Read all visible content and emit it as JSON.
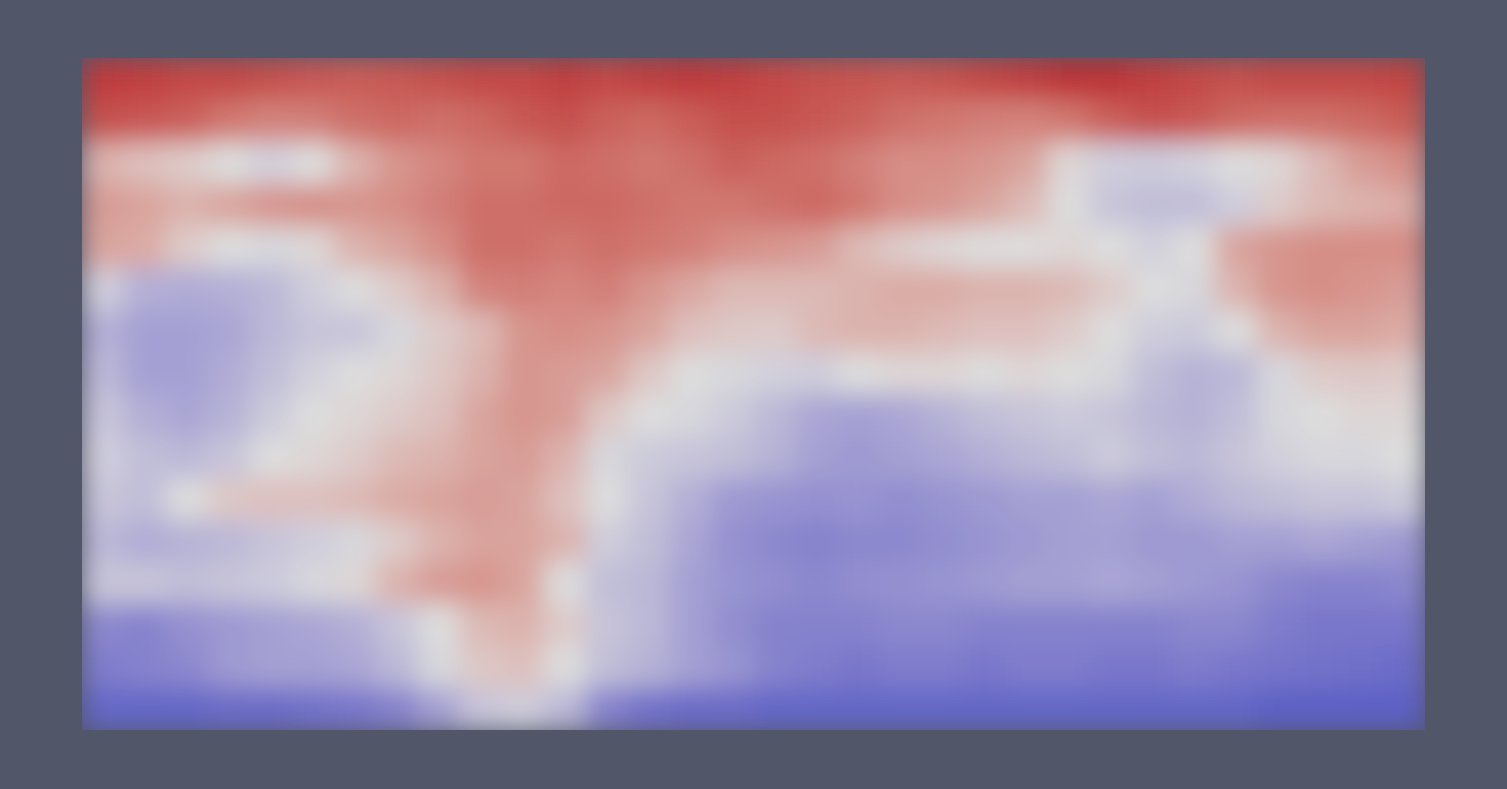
{
  "chart_data": {
    "type": "heatmap",
    "tick_labels": false,
    "zlim": [
      0,
      1
    ],
    "cells": [
      [
        0.93,
        0.92,
        0.9,
        0.9,
        0.88,
        0.86,
        0.85,
        0.86,
        0.88,
        0.9,
        0.9,
        0.92,
        0.9,
        0.92,
        0.93,
        0.92,
        0.9,
        0.88,
        0.87,
        0.86,
        0.87,
        0.9,
        0.92,
        0.94,
        0.94,
        0.92,
        0.9,
        0.88,
        0.9,
        0.9,
        0.9,
        0.91
      ],
      [
        0.88,
        0.86,
        0.84,
        0.78,
        0.75,
        0.76,
        0.8,
        0.82,
        0.8,
        0.82,
        0.86,
        0.88,
        0.84,
        0.82,
        0.85,
        0.88,
        0.88,
        0.86,
        0.84,
        0.8,
        0.78,
        0.76,
        0.75,
        0.78,
        0.84,
        0.88,
        0.86,
        0.82,
        0.8,
        0.8,
        0.82,
        0.85
      ],
      [
        0.62,
        0.58,
        0.55,
        0.5,
        0.46,
        0.5,
        0.62,
        0.7,
        0.74,
        0.78,
        0.78,
        0.82,
        0.8,
        0.78,
        0.8,
        0.84,
        0.82,
        0.8,
        0.76,
        0.72,
        0.72,
        0.7,
        0.66,
        0.52,
        0.45,
        0.44,
        0.46,
        0.5,
        0.52,
        0.6,
        0.68,
        0.72
      ],
      [
        0.68,
        0.66,
        0.62,
        0.66,
        0.7,
        0.72,
        0.7,
        0.72,
        0.76,
        0.8,
        0.8,
        0.82,
        0.82,
        0.8,
        0.78,
        0.78,
        0.8,
        0.82,
        0.78,
        0.72,
        0.7,
        0.66,
        0.6,
        0.5,
        0.42,
        0.4,
        0.4,
        0.45,
        0.55,
        0.6,
        0.62,
        0.64
      ],
      [
        0.66,
        0.64,
        0.55,
        0.5,
        0.48,
        0.52,
        0.62,
        0.66,
        0.72,
        0.8,
        0.8,
        0.78,
        0.8,
        0.78,
        0.76,
        0.72,
        0.7,
        0.68,
        0.6,
        0.55,
        0.52,
        0.5,
        0.5,
        0.52,
        0.5,
        0.46,
        0.5,
        0.66,
        0.7,
        0.72,
        0.72,
        0.72
      ],
      [
        0.45,
        0.35,
        0.34,
        0.35,
        0.38,
        0.45,
        0.5,
        0.55,
        0.62,
        0.75,
        0.76,
        0.74,
        0.76,
        0.7,
        0.65,
        0.6,
        0.6,
        0.6,
        0.62,
        0.64,
        0.64,
        0.62,
        0.62,
        0.6,
        0.55,
        0.5,
        0.48,
        0.62,
        0.7,
        0.72,
        0.7,
        0.68
      ],
      [
        0.35,
        0.3,
        0.3,
        0.32,
        0.38,
        0.42,
        0.42,
        0.48,
        0.55,
        0.6,
        0.7,
        0.72,
        0.7,
        0.66,
        0.58,
        0.56,
        0.55,
        0.6,
        0.62,
        0.62,
        0.6,
        0.58,
        0.58,
        0.55,
        0.5,
        0.45,
        0.44,
        0.5,
        0.62,
        0.66,
        0.66,
        0.64
      ],
      [
        0.38,
        0.3,
        0.3,
        0.34,
        0.4,
        0.46,
        0.5,
        0.52,
        0.56,
        0.62,
        0.7,
        0.68,
        0.66,
        0.56,
        0.5,
        0.48,
        0.46,
        0.45,
        0.5,
        0.52,
        0.52,
        0.5,
        0.52,
        0.5,
        0.48,
        0.4,
        0.36,
        0.38,
        0.48,
        0.55,
        0.56,
        0.55
      ],
      [
        0.42,
        0.35,
        0.32,
        0.36,
        0.44,
        0.5,
        0.52,
        0.55,
        0.58,
        0.66,
        0.7,
        0.68,
        0.56,
        0.5,
        0.48,
        0.44,
        0.38,
        0.32,
        0.3,
        0.32,
        0.36,
        0.4,
        0.42,
        0.44,
        0.42,
        0.38,
        0.36,
        0.4,
        0.48,
        0.5,
        0.52,
        0.52
      ],
      [
        0.45,
        0.4,
        0.38,
        0.42,
        0.5,
        0.52,
        0.55,
        0.6,
        0.62,
        0.66,
        0.68,
        0.62,
        0.48,
        0.44,
        0.42,
        0.4,
        0.36,
        0.3,
        0.28,
        0.3,
        0.32,
        0.35,
        0.38,
        0.4,
        0.44,
        0.4,
        0.38,
        0.42,
        0.46,
        0.48,
        0.48,
        0.5
      ],
      [
        0.42,
        0.4,
        0.5,
        0.56,
        0.58,
        0.58,
        0.6,
        0.64,
        0.66,
        0.68,
        0.66,
        0.58,
        0.5,
        0.42,
        0.35,
        0.28,
        0.26,
        0.25,
        0.26,
        0.24,
        0.26,
        0.28,
        0.3,
        0.3,
        0.32,
        0.3,
        0.34,
        0.38,
        0.4,
        0.42,
        0.42,
        0.44
      ],
      [
        0.38,
        0.34,
        0.36,
        0.38,
        0.42,
        0.45,
        0.48,
        0.55,
        0.62,
        0.66,
        0.66,
        0.62,
        0.45,
        0.4,
        0.32,
        0.25,
        0.22,
        0.2,
        0.22,
        0.22,
        0.24,
        0.26,
        0.28,
        0.3,
        0.3,
        0.28,
        0.28,
        0.3,
        0.3,
        0.32,
        0.3,
        0.28
      ],
      [
        0.42,
        0.42,
        0.4,
        0.42,
        0.44,
        0.48,
        0.52,
        0.62,
        0.68,
        0.7,
        0.66,
        0.5,
        0.4,
        0.38,
        0.3,
        0.26,
        0.24,
        0.22,
        0.24,
        0.25,
        0.26,
        0.28,
        0.3,
        0.3,
        0.32,
        0.3,
        0.28,
        0.26,
        0.22,
        0.2,
        0.2,
        0.22
      ],
      [
        0.22,
        0.2,
        0.25,
        0.28,
        0.3,
        0.32,
        0.35,
        0.42,
        0.5,
        0.6,
        0.62,
        0.55,
        0.42,
        0.38,
        0.3,
        0.24,
        0.2,
        0.2,
        0.2,
        0.22,
        0.22,
        0.2,
        0.2,
        0.2,
        0.2,
        0.2,
        0.22,
        0.22,
        0.18,
        0.16,
        0.16,
        0.16
      ],
      [
        0.18,
        0.2,
        0.22,
        0.28,
        0.3,
        0.3,
        0.32,
        0.38,
        0.48,
        0.56,
        0.58,
        0.5,
        0.4,
        0.36,
        0.3,
        0.26,
        0.2,
        0.18,
        0.16,
        0.18,
        0.18,
        0.16,
        0.18,
        0.18,
        0.16,
        0.16,
        0.18,
        0.16,
        0.15,
        0.14,
        0.13,
        0.12
      ],
      [
        0.1,
        0.1,
        0.1,
        0.12,
        0.12,
        0.14,
        0.16,
        0.2,
        0.3,
        0.42,
        0.45,
        0.38,
        0.2,
        0.14,
        0.12,
        0.12,
        0.1,
        0.1,
        0.1,
        0.1,
        0.1,
        0.1,
        0.1,
        0.1,
        0.1,
        0.1,
        0.1,
        0.1,
        0.08,
        0.08,
        0.08,
        0.08
      ]
    ]
  }
}
